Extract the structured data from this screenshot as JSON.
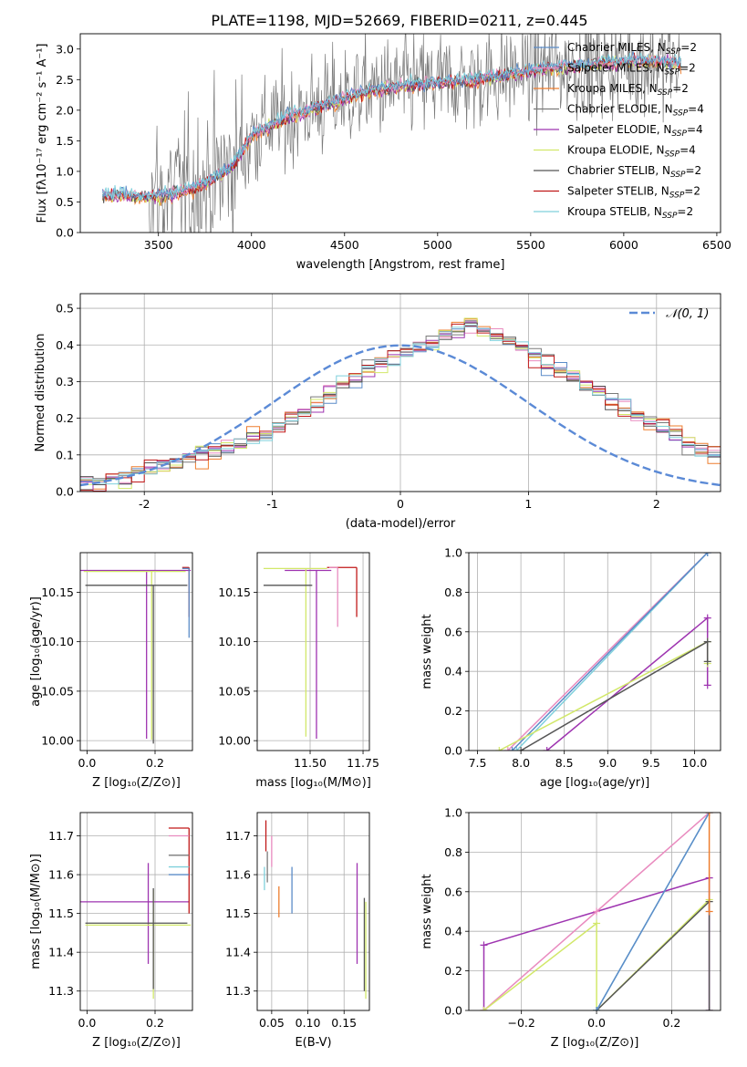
{
  "figure": {
    "title": "PLATE=1198, MJD=52669, FIBERID=0211, z=0.445"
  },
  "colors": {
    "chabrier_miles": "#5b8cc8",
    "salpeter_miles": "#e98bbf",
    "kroupa_miles": "#ee7d2e",
    "chabrier_elodie": "#7a7a7a",
    "salpeter_elodie": "#9e34b0",
    "kroupa_elodie": "#d2e86a",
    "chabrier_stelib": "#555555",
    "salpeter_stelib": "#c01818",
    "kroupa_stelib": "#7fd0dc",
    "gaussian": "#5b8ad6",
    "grid": "#b0b0b0"
  },
  "chart_data": [
    {
      "id": "spectrum",
      "type": "line",
      "xlabel": "wavelength [Angstrom, rest frame]",
      "ylabel": "Flux [fλ10⁻¹⁷ erg cm⁻² s⁻¹ A⁻¹]",
      "xlim": [
        3080,
        6520
      ],
      "ylim": [
        0,
        3.25
      ],
      "xticks": [
        3500,
        4000,
        4500,
        5000,
        5500,
        6000,
        6500
      ],
      "yticks": [
        0.0,
        0.5,
        1.0,
        1.5,
        2.0,
        2.5,
        3.0
      ],
      "data_range": [
        3200,
        6310
      ],
      "continuum": {
        "x": [
          3200,
          3300,
          3400,
          3500,
          3600,
          3700,
          3800,
          3900,
          4000,
          4200,
          4400,
          4600,
          4800,
          5000,
          5200,
          5400,
          5600,
          5800,
          6000,
          6200,
          6310
        ],
        "y": [
          0.6,
          0.62,
          0.58,
          0.6,
          0.66,
          0.74,
          0.9,
          1.1,
          1.6,
          1.9,
          2.1,
          2.3,
          2.4,
          2.45,
          2.5,
          2.6,
          2.7,
          2.75,
          2.8,
          2.8,
          2.75
        ]
      },
      "legend": [
        {
          "label": "Chabrier MILES, N",
          "sub": "SSP",
          "suffix": "=2",
          "color_key": "chabrier_miles"
        },
        {
          "label": "Salpeter MILES, N",
          "sub": "SSP",
          "suffix": "=2",
          "color_key": "salpeter_miles"
        },
        {
          "label": "Kroupa MILES, N",
          "sub": "SSP",
          "suffix": "=2",
          "color_key": "kroupa_miles"
        },
        {
          "label": "Chabrier ELODIE, N",
          "sub": "SSP",
          "suffix": "=4",
          "color_key": "chabrier_elodie"
        },
        {
          "label": "Salpeter ELODIE, N",
          "sub": "SSP",
          "suffix": "=4",
          "color_key": "salpeter_elodie"
        },
        {
          "label": "Kroupa ELODIE, N",
          "sub": "SSP",
          "suffix": "=4",
          "color_key": "kroupa_elodie"
        },
        {
          "label": "Chabrier STELIB, N",
          "sub": "SSP",
          "suffix": "=2",
          "color_key": "chabrier_stelib"
        },
        {
          "label": "Salpeter STELIB, N",
          "sub": "SSP",
          "suffix": "=2",
          "color_key": "salpeter_stelib"
        },
        {
          "label": "Kroupa STELIB, N",
          "sub": "SSP",
          "suffix": "=2",
          "color_key": "kroupa_stelib"
        }
      ]
    },
    {
      "id": "residuals",
      "type": "line",
      "xlabel": "(data-model)/error",
      "ylabel": "Normed distribution",
      "xlim": [
        -2.5,
        2.5
      ],
      "ylim": [
        0,
        0.54
      ],
      "xticks": [
        -2,
        -1,
        0,
        1,
        2
      ],
      "yticks": [
        0.0,
        0.1,
        0.2,
        0.3,
        0.4,
        0.5
      ],
      "bin_width": 0.1,
      "histogram": [
        0.02,
        0.02,
        0.03,
        0.04,
        0.05,
        0.06,
        0.07,
        0.08,
        0.09,
        0.1,
        0.11,
        0.12,
        0.13,
        0.15,
        0.16,
        0.18,
        0.2,
        0.22,
        0.24,
        0.27,
        0.29,
        0.31,
        0.33,
        0.35,
        0.37,
        0.38,
        0.39,
        0.41,
        0.43,
        0.44,
        0.45,
        0.44,
        0.43,
        0.41,
        0.39,
        0.37,
        0.35,
        0.33,
        0.31,
        0.29,
        0.27,
        0.25,
        0.23,
        0.21,
        0.19,
        0.17,
        0.15,
        0.13,
        0.11,
        0.1
      ],
      "legend": [
        {
          "label": "𝒩(0, 1)",
          "color_key": "gaussian"
        }
      ]
    },
    {
      "id": "age_vs_Z",
      "type": "scatter",
      "xlabel": "Z [log₁₀(Z/Z⊙)]",
      "ylabel": "age  [log₁₀(age/yr)]",
      "xlim": [
        -0.02,
        0.31
      ],
      "ylim": [
        9.99,
        10.19
      ],
      "xticks": [
        0.0,
        0.2
      ],
      "xticklabels": [
        "0.0",
        "0.2"
      ],
      "yticks": [
        10.0,
        10.05,
        10.1,
        10.15
      ],
      "yticklabels": [
        "10.00",
        "10.05",
        "10.10",
        "10.15"
      ],
      "points": [
        {
          "x": 0.175,
          "y": 10.172,
          "xerr": [
            0.2,
            0.13
          ],
          "yerr": [
            0.17,
            0.0
          ],
          "color_key": "salpeter_elodie"
        },
        {
          "x": 0.19,
          "y": 10.171,
          "xerr": [
            0.2,
            0.1
          ],
          "yerr": [
            0.17,
            0.0
          ],
          "color_key": "kroupa_elodie"
        },
        {
          "x": 0.195,
          "y": 10.157,
          "xerr": [
            0.2,
            0.1
          ],
          "yerr": [
            0.16,
            0.0
          ],
          "color_key": "chabrier_stelib"
        },
        {
          "x": 0.3,
          "y": 10.175,
          "xerr": [
            0.02,
            0.0
          ],
          "yerr": [
            0.05,
            0.0
          ],
          "color_key": "salpeter_stelib"
        },
        {
          "x": 0.3,
          "y": 10.174,
          "xerr": [
            0.02,
            0.0
          ],
          "yerr": [
            0.07,
            0.0
          ],
          "color_key": "chabrier_miles"
        }
      ]
    },
    {
      "id": "age_vs_mass",
      "type": "scatter",
      "xlabel": "mass [log₁₀(M/M⊙)]",
      "ylabel": "",
      "xlim": [
        11.25,
        11.78
      ],
      "ylim": [
        9.99,
        10.19
      ],
      "xticks": [
        11.5,
        11.75
      ],
      "xticklabels": [
        "11.50",
        "11.75"
      ],
      "yticks": [
        10.0,
        10.05,
        10.1,
        10.15
      ],
      "yticklabels": [
        "10.00",
        "10.05",
        "10.10",
        "10.15"
      ],
      "points": [
        {
          "x": 11.53,
          "y": 10.172,
          "xerr": [
            0.15,
            0.07
          ],
          "yerr": [
            0.17,
            0.0
          ],
          "color_key": "salpeter_elodie"
        },
        {
          "x": 11.48,
          "y": 10.174,
          "xerr": [
            0.2,
            0.1
          ],
          "yerr": [
            0.17,
            0.0
          ],
          "color_key": "kroupa_elodie"
        },
        {
          "x": 11.48,
          "y": 10.157,
          "xerr": [
            0.2,
            0.03
          ],
          "yerr": [
            0.0,
            0.0
          ],
          "color_key": "chabrier_stelib"
        },
        {
          "x": 11.72,
          "y": 10.175,
          "xerr": [
            0.14,
            0.0
          ],
          "yerr": [
            0.05,
            0.0
          ],
          "color_key": "salpeter_stelib"
        },
        {
          "x": 11.63,
          "y": 10.175,
          "xerr": [
            0.04,
            0.0
          ],
          "yerr": [
            0.06,
            0.0
          ],
          "color_key": "salpeter_miles"
        }
      ]
    },
    {
      "id": "weight_vs_age",
      "type": "line",
      "xlabel": "age  [log₁₀(age/yr)]",
      "ylabel": "mass weight",
      "xlim": [
        7.4,
        10.3
      ],
      "ylim": [
        0,
        1.0
      ],
      "xticks": [
        7.5,
        8.0,
        8.5,
        9.0,
        9.5,
        10.0
      ],
      "xticklabels": [
        "7.5",
        "8.0",
        "8.5",
        "9.0",
        "9.5",
        "10.0"
      ],
      "yticks": [
        0.0,
        0.2,
        0.4,
        0.6,
        0.8,
        1.0
      ],
      "series": [
        {
          "color_key": "salpeter_miles",
          "x": [
            7.85,
            10.15
          ],
          "y": [
            0.0,
            1.0
          ]
        },
        {
          "color_key": "kroupa_stelib",
          "x": [
            7.95,
            10.15
          ],
          "y": [
            0.0,
            1.0
          ]
        },
        {
          "color_key": "chabrier_miles",
          "x": [
            7.9,
            10.15
          ],
          "y": [
            0.0,
            1.0
          ]
        },
        {
          "color_key": "salpeter_elodie",
          "x": [
            8.3,
            10.15,
            10.15
          ],
          "y": [
            0.0,
            0.67,
            0.33
          ]
        },
        {
          "color_key": "kroupa_elodie",
          "x": [
            7.75,
            10.15,
            10.15
          ],
          "y": [
            0.0,
            0.55,
            0.44
          ]
        },
        {
          "color_key": "chabrier_stelib",
          "x": [
            8.0,
            10.15,
            10.15
          ],
          "y": [
            0.0,
            0.55,
            0.45
          ]
        }
      ]
    },
    {
      "id": "mass_vs_Z",
      "type": "scatter",
      "xlabel": "Z [log₁₀(Z/Z⊙)]",
      "ylabel": "mass [log₁₀(M/M⊙)]",
      "xlim": [
        -0.02,
        0.31
      ],
      "ylim": [
        11.25,
        11.76
      ],
      "xticks": [
        0.0,
        0.2
      ],
      "xticklabels": [
        "0.0",
        "0.2"
      ],
      "yticks": [
        11.3,
        11.4,
        11.5,
        11.6,
        11.7
      ],
      "yticklabels": [
        "11.3",
        "11.4",
        "11.5",
        "11.6",
        "11.7"
      ],
      "points": [
        {
          "x": 0.18,
          "y": 11.53,
          "xerr": [
            0.2,
            0.12
          ],
          "yerr": [
            0.16,
            0.1
          ],
          "color_key": "salpeter_elodie"
        },
        {
          "x": 0.195,
          "y": 11.47,
          "xerr": [
            0.2,
            0.11
          ],
          "yerr": [
            0.19,
            0.09
          ],
          "color_key": "kroupa_elodie"
        },
        {
          "x": 0.195,
          "y": 11.475,
          "xerr": [
            0.2,
            0.1
          ],
          "yerr": [
            0.17,
            0.09
          ],
          "color_key": "chabrier_stelib"
        },
        {
          "x": 0.3,
          "y": 11.72,
          "xerr": [
            0.06,
            0.0
          ],
          "yerr": [
            0.22,
            0.0
          ],
          "color_key": "salpeter_stelib"
        },
        {
          "x": 0.3,
          "y": 11.7,
          "xerr": [
            0.06,
            0.0
          ],
          "yerr": [
            0.0,
            0.0
          ],
          "color_key": "salpeter_miles"
        },
        {
          "x": 0.3,
          "y": 11.65,
          "xerr": [
            0.06,
            0.0
          ],
          "yerr": [
            0.0,
            0.0
          ],
          "color_key": "chabrier_elodie"
        },
        {
          "x": 0.3,
          "y": 11.62,
          "xerr": [
            0.06,
            0.0
          ],
          "yerr": [
            0.0,
            0.0
          ],
          "color_key": "kroupa_stelib"
        },
        {
          "x": 0.3,
          "y": 11.6,
          "xerr": [
            0.06,
            0.0
          ],
          "yerr": [
            0.0,
            0.0
          ],
          "color_key": "chabrier_miles"
        }
      ]
    },
    {
      "id": "mass_vs_ebv",
      "type": "scatter",
      "xlabel": "E(B-V)",
      "ylabel": "",
      "xlim": [
        0.03,
        0.185
      ],
      "ylim": [
        11.25,
        11.76
      ],
      "xticks": [
        0.05,
        0.1,
        0.15
      ],
      "xticklabels": [
        "0.05",
        "0.10",
        "0.15"
      ],
      "yticks": [
        11.3,
        11.4,
        11.5,
        11.6,
        11.7
      ],
      "yticklabels": [
        "11.3",
        "11.4",
        "11.5",
        "11.6",
        "11.7"
      ],
      "points": [
        {
          "x": 0.042,
          "y": 11.7,
          "yerr": [
            0.04,
            0.04
          ],
          "color_key": "salpeter_stelib"
        },
        {
          "x": 0.05,
          "y": 11.66,
          "yerr": [
            0.04,
            0.04
          ],
          "color_key": "salpeter_miles"
        },
        {
          "x": 0.044,
          "y": 11.62,
          "yerr": [
            0.04,
            0.04
          ],
          "color_key": "chabrier_elodie"
        },
        {
          "x": 0.04,
          "y": 11.6,
          "yerr": [
            0.04,
            0.02
          ],
          "color_key": "kroupa_stelib"
        },
        {
          "x": 0.06,
          "y": 11.53,
          "yerr": [
            0.04,
            0.04
          ],
          "color_key": "kroupa_miles"
        },
        {
          "x": 0.078,
          "y": 11.57,
          "yerr": [
            0.07,
            0.05
          ],
          "color_key": "chabrier_miles"
        },
        {
          "x": 0.168,
          "y": 11.5,
          "yerr": [
            0.13,
            0.13
          ],
          "color_key": "salpeter_elodie"
        },
        {
          "x": 0.178,
          "y": 11.42,
          "yerr": [
            0.12,
            0.12
          ],
          "color_key": "chabrier_stelib"
        },
        {
          "x": 0.18,
          "y": 11.41,
          "yerr": [
            0.13,
            0.12
          ],
          "color_key": "kroupa_elodie"
        }
      ]
    },
    {
      "id": "weight_vs_Z",
      "type": "line",
      "xlabel": "Z [log₁₀(Z/Z⊙)]",
      "ylabel": "mass weight",
      "xlim": [
        -0.34,
        0.33
      ],
      "ylim": [
        0,
        1.0
      ],
      "xticks": [
        -0.2,
        0.0,
        0.2
      ],
      "xticklabels": [
        "−0.2",
        "0.0",
        "0.2"
      ],
      "yticks": [
        0.0,
        0.2,
        0.4,
        0.6,
        0.8,
        1.0
      ],
      "series": [
        {
          "color_key": "salpeter_elodie",
          "x": [
            -0.3,
            -0.3,
            0.3,
            0.3
          ],
          "y": [
            0.0,
            0.33,
            0.67,
            0.0
          ]
        },
        {
          "color_key": "salpeter_miles",
          "x": [
            -0.3,
            0.0,
            0.3
          ],
          "y": [
            0.0,
            0.5,
            1.0
          ]
        },
        {
          "color_key": "kroupa_elodie",
          "x": [
            -0.3,
            0.0,
            0.0,
            0.3
          ],
          "y": [
            0.0,
            0.44,
            0.0,
            0.56
          ]
        },
        {
          "color_key": "chabrier_stelib",
          "x": [
            0.0,
            0.3,
            0.3
          ],
          "y": [
            0.0,
            0.55,
            0.0
          ]
        },
        {
          "color_key": "kroupa_stelib",
          "x": [
            0.0,
            0.3
          ],
          "y": [
            0.0,
            1.0
          ]
        },
        {
          "color_key": "chabrier_miles",
          "x": [
            0.0,
            0.3
          ],
          "y": [
            0.0,
            1.0
          ]
        },
        {
          "color_key": "kroupa_miles",
          "x": [
            0.3,
            0.3
          ],
          "y": [
            0.5,
            1.0
          ]
        }
      ]
    }
  ]
}
